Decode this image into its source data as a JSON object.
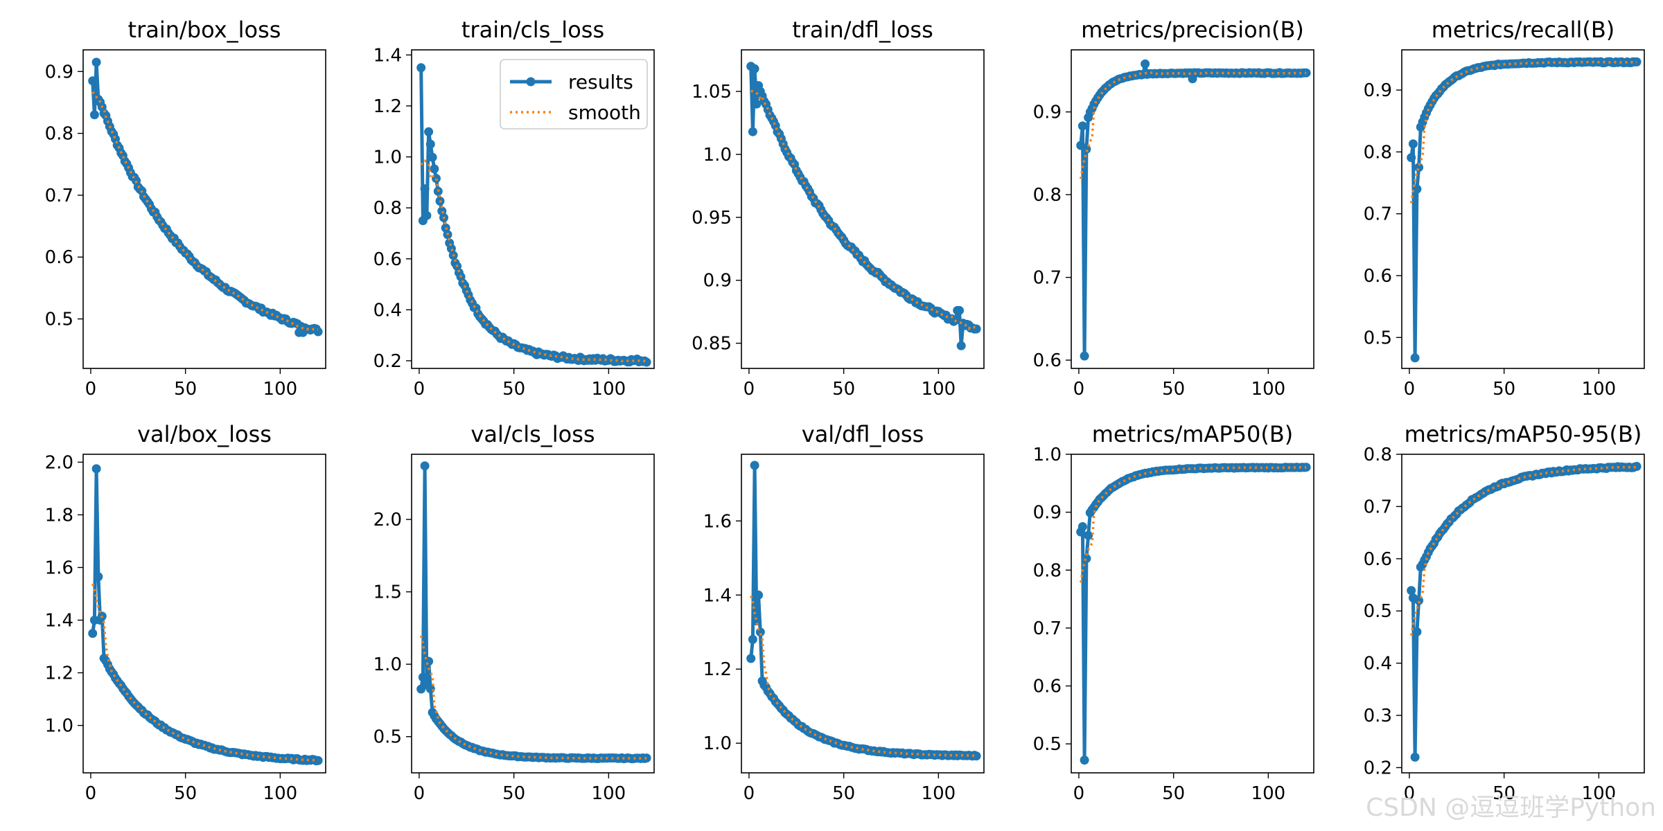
{
  "watermark": "CSDN @逗逗班学Python",
  "legend": {
    "results_label": "results",
    "smooth_label": "smooth"
  },
  "colors": {
    "results": "#1f77b4",
    "smooth": "#ff7f0e"
  },
  "chart_data": [
    {
      "type": "line",
      "title": "train/box_loss",
      "xlim": [
        -4,
        124
      ],
      "ylim": [
        0.42,
        0.935
      ],
      "xticks": [
        0,
        50,
        100
      ],
      "yticks": [
        0.5,
        0.6,
        0.7,
        0.8,
        0.9
      ],
      "curve": {
        "shape": "decay",
        "x0": 1,
        "y0": 0.885,
        "yend": 0.44,
        "k": 0.02,
        "spikes": [
          [
            2,
            0.83
          ],
          [
            3,
            0.915
          ],
          [
            4,
            0.855
          ],
          [
            110,
            0.478
          ],
          [
            112,
            0.478
          ]
        ]
      }
    },
    {
      "type": "line",
      "title": "train/cls_loss",
      "xlim": [
        -4,
        124
      ],
      "ylim": [
        0.17,
        1.42
      ],
      "xticks": [
        0,
        50,
        100
      ],
      "yticks": [
        0.2,
        0.4,
        0.6,
        0.8,
        1.0,
        1.2,
        1.4
      ],
      "legend_here": true,
      "curve": {
        "shape": "decay",
        "x0": 1,
        "y0": 1.35,
        "yend": 0.2,
        "k": 0.06,
        "spikes": [
          [
            2,
            0.75
          ],
          [
            3,
            0.875
          ],
          [
            4,
            0.77
          ]
        ]
      }
    },
    {
      "type": "line",
      "title": "train/dfl_loss",
      "xlim": [
        -4,
        124
      ],
      "ylim": [
        0.83,
        1.083
      ],
      "xticks": [
        0,
        50,
        100
      ],
      "yticks": [
        0.85,
        0.9,
        0.95,
        1.0,
        1.05
      ],
      "curve": {
        "shape": "decay",
        "x0": 1,
        "y0": 1.071,
        "yend": 0.834,
        "k": 0.018,
        "spikes": [
          [
            2,
            1.018
          ],
          [
            3,
            1.068
          ],
          [
            4,
            1.04
          ],
          [
            110,
            0.876
          ],
          [
            111,
            0.876
          ],
          [
            112,
            0.848
          ]
        ]
      }
    },
    {
      "type": "line",
      "title": "metrics/precision(B)",
      "xlim": [
        -4,
        124
      ],
      "ylim": [
        0.59,
        0.975
      ],
      "xticks": [
        0,
        50,
        100
      ],
      "yticks": [
        0.6,
        0.7,
        0.8,
        0.9
      ],
      "curve": {
        "shape": "rise",
        "x0": 1,
        "y0": 0.86,
        "yend": 0.947,
        "k": 0.12,
        "spikes": [
          [
            2,
            0.883
          ],
          [
            3,
            0.605
          ],
          [
            4,
            0.855
          ],
          [
            35,
            0.958
          ],
          [
            60,
            0.94
          ]
        ]
      }
    },
    {
      "type": "line",
      "title": "metrics/recall(B)",
      "xlim": [
        -4,
        124
      ],
      "ylim": [
        0.45,
        0.965
      ],
      "xticks": [
        0,
        50,
        100
      ],
      "yticks": [
        0.5,
        0.6,
        0.7,
        0.8,
        0.9
      ],
      "curve": {
        "shape": "rise",
        "x0": 1,
        "y0": 0.79,
        "yend": 0.945,
        "k": 0.08,
        "spikes": [
          [
            2,
            0.813
          ],
          [
            3,
            0.467
          ],
          [
            4,
            0.74
          ],
          [
            5,
            0.775
          ]
        ]
      }
    },
    {
      "type": "line",
      "title": "val/box_loss",
      "xlim": [
        -4,
        124
      ],
      "ylim": [
        0.82,
        2.03
      ],
      "xticks": [
        0,
        50,
        100
      ],
      "yticks": [
        1.0,
        1.2,
        1.4,
        1.6,
        1.8,
        2.0
      ],
      "curve": {
        "shape": "decay",
        "x0": 1,
        "y0": 1.35,
        "yend": 0.86,
        "k": 0.035,
        "spikes": [
          [
            2,
            1.4
          ],
          [
            3,
            1.975
          ],
          [
            4,
            1.565
          ],
          [
            5,
            1.4
          ],
          [
            6,
            1.415
          ]
        ]
      }
    },
    {
      "type": "line",
      "title": "val/cls_loss",
      "xlim": [
        -4,
        124
      ],
      "ylim": [
        0.25,
        2.45
      ],
      "xticks": [
        0,
        50,
        100
      ],
      "yticks": [
        0.5,
        1.0,
        1.5,
        2.0
      ],
      "curve": {
        "shape": "decay",
        "x0": 1,
        "y0": 0.83,
        "yend": 0.35,
        "k": 0.07,
        "spikes": [
          [
            2,
            0.91
          ],
          [
            3,
            2.37
          ],
          [
            4,
            0.86
          ],
          [
            5,
            1.02
          ],
          [
            6,
            0.83
          ]
        ]
      }
    },
    {
      "type": "line",
      "title": "val/dfl_loss",
      "xlim": [
        -4,
        124
      ],
      "ylim": [
        0.92,
        1.78
      ],
      "xticks": [
        0,
        50,
        100
      ],
      "yticks": [
        1.0,
        1.2,
        1.4,
        1.6
      ],
      "curve": {
        "shape": "decay",
        "x0": 1,
        "y0": 1.23,
        "yend": 0.965,
        "k": 0.045,
        "spikes": [
          [
            2,
            1.28
          ],
          [
            3,
            1.75
          ],
          [
            4,
            1.33
          ],
          [
            5,
            1.4
          ],
          [
            6,
            1.3
          ]
        ]
      }
    },
    {
      "type": "line",
      "title": "metrics/mAP50(B)",
      "xlim": [
        -4,
        124
      ],
      "ylim": [
        0.45,
        1.0
      ],
      "xticks": [
        0,
        50,
        100
      ],
      "yticks": [
        0.5,
        0.6,
        0.7,
        0.8,
        0.9,
        1.0
      ],
      "curve": {
        "shape": "rise",
        "x0": 1,
        "y0": 0.866,
        "yend": 0.977,
        "k": 0.07,
        "spikes": [
          [
            2,
            0.875
          ],
          [
            3,
            0.472
          ],
          [
            4,
            0.82
          ],
          [
            5,
            0.86
          ]
        ]
      }
    },
    {
      "type": "line",
      "title": "metrics/mAP50-95(B)",
      "xlim": [
        -4,
        124
      ],
      "ylim": [
        0.19,
        0.8
      ],
      "xticks": [
        0,
        50,
        100
      ],
      "yticks": [
        0.2,
        0.3,
        0.4,
        0.5,
        0.6,
        0.7,
        0.8
      ],
      "curve": {
        "shape": "rise",
        "x0": 1,
        "y0": 0.54,
        "yend": 0.778,
        "k": 0.04,
        "spikes": [
          [
            2,
            0.525
          ],
          [
            3,
            0.22
          ],
          [
            4,
            0.46
          ],
          [
            5,
            0.52
          ]
        ]
      }
    }
  ]
}
